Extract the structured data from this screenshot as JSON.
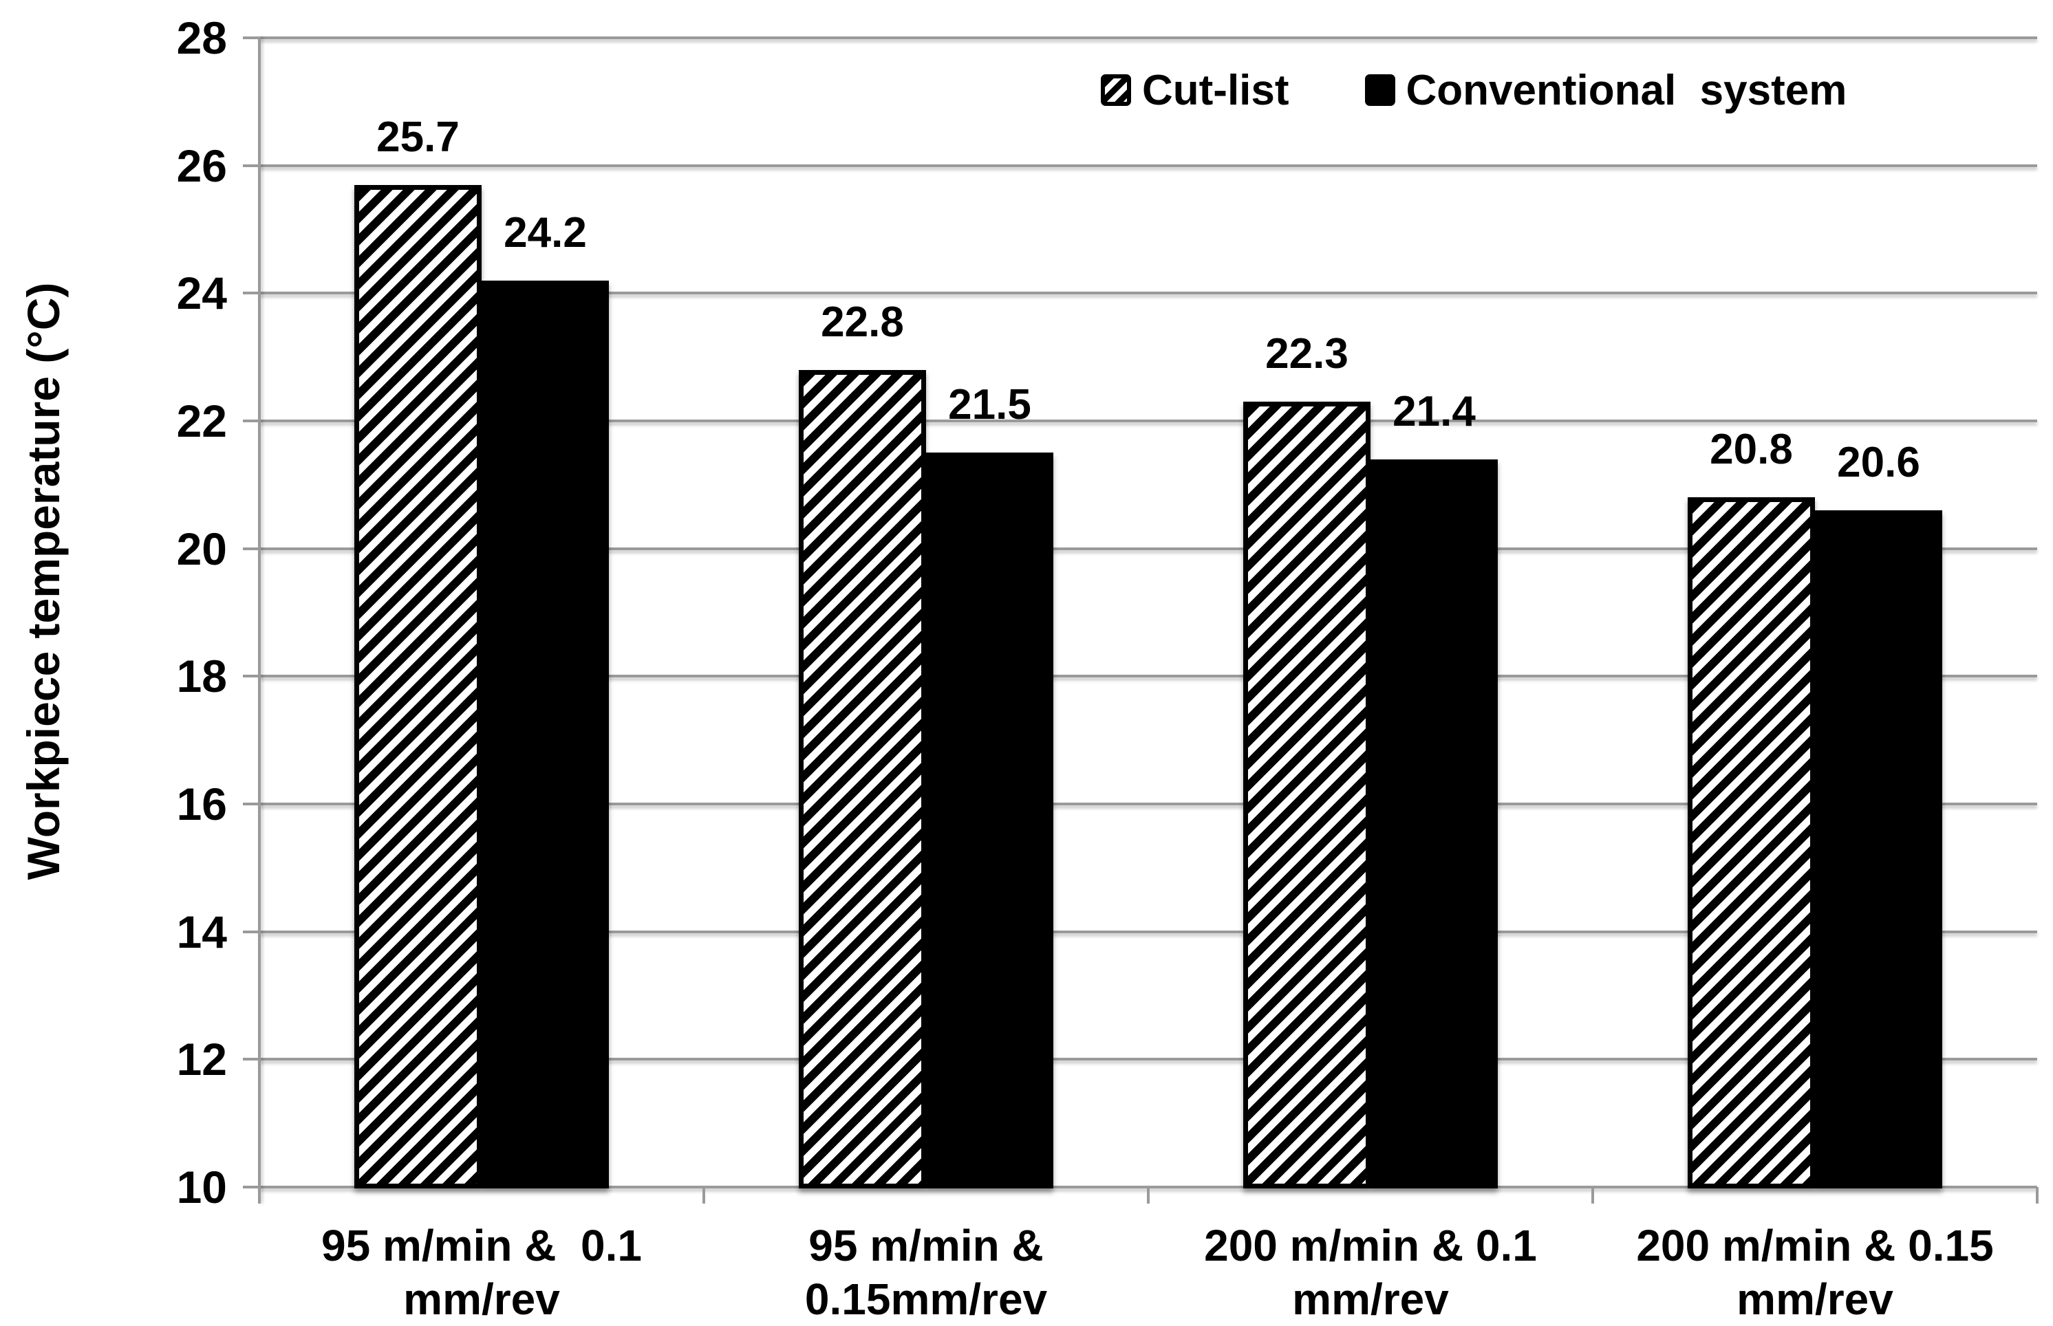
{
  "chart_data": {
    "type": "bar",
    "title": "",
    "xlabel": "",
    "ylabel": "Workpiece temperature (°C)",
    "ylim": [
      10,
      28
    ],
    "ytick_step": 2,
    "yticks": [
      28,
      26,
      24,
      22,
      20,
      18,
      16,
      14,
      12,
      10
    ],
    "grid": true,
    "legend_position": "top-inside",
    "categories": [
      {
        "line1": "95 m/min &  0.1",
        "line2": "mm/rev"
      },
      {
        "line1": "95 m/min &",
        "line2": "0.15mm/rev"
      },
      {
        "line1": "200 m/min & 0.1",
        "line2": "mm/rev"
      },
      {
        "line1": "200 m/min & 0.15",
        "line2": "mm/rev"
      }
    ],
    "series": [
      {
        "name": "Cut-list",
        "style": "hatched",
        "values": [
          25.7,
          22.8,
          22.3,
          20.8
        ]
      },
      {
        "name": "Conventional  system",
        "style": "solid",
        "values": [
          24.2,
          21.5,
          21.4,
          20.6
        ]
      }
    ],
    "colors": {
      "bar_solid": "#000000",
      "bar_hatch_fg": "#000000",
      "bar_hatch_bg": "#ffffff",
      "grid": "#9a9a9a",
      "text": "#000000",
      "background": "#ffffff"
    }
  }
}
